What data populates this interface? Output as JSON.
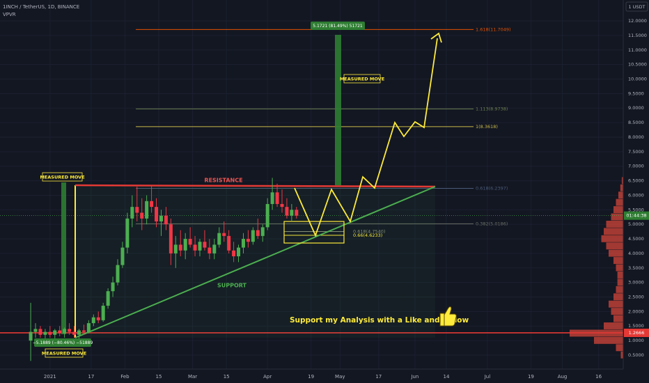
{
  "header": {
    "symbol": "1INCH / TetherUS, 1D, BINANCE",
    "indicator": "VPVR",
    "currency": "1 USDT"
  },
  "chart_data": {
    "type": "candlestick",
    "x": [
      -8,
      -6,
      -4,
      -2,
      0,
      2,
      4,
      6,
      8,
      10,
      12,
      14,
      16,
      18,
      20,
      22,
      24,
      26,
      28,
      30,
      32,
      34,
      36,
      38,
      40,
      42,
      44,
      46,
      48,
      50,
      52,
      54,
      56,
      58,
      60,
      62,
      64,
      66,
      68,
      70,
      72,
      74,
      76,
      78,
      80,
      82,
      84,
      86,
      88,
      90,
      92,
      94,
      96,
      98,
      100,
      102
    ],
    "open": [
      1.0,
      1.3,
      1.4,
      1.2,
      1.3,
      1.2,
      1.35,
      1.25,
      1.4,
      1.3,
      1.2,
      1.35,
      1.3,
      1.6,
      1.8,
      1.7,
      2.2,
      2.7,
      3.0,
      3.6,
      4.2,
      5.2,
      5.6,
      5.4,
      5.2,
      5.8,
      5.6,
      5.1,
      5.3,
      5.0,
      4.0,
      4.3,
      4.1,
      4.5,
      4.3,
      4.1,
      4.4,
      4.2,
      4.0,
      4.3,
      4.7,
      4.6,
      4.1,
      3.9,
      4.2,
      4.5,
      4.4,
      4.8,
      4.6,
      4.9,
      5.7,
      6.1,
      5.7,
      5.6,
      5.3,
      5.5
    ],
    "high": [
      2.3,
      1.6,
      1.5,
      1.4,
      1.5,
      1.4,
      1.5,
      1.45,
      1.6,
      1.5,
      1.4,
      1.55,
      1.7,
      1.9,
      2.0,
      2.3,
      2.8,
      3.2,
      3.8,
      4.4,
      5.4,
      6.0,
      6.3,
      5.9,
      6.0,
      6.35,
      5.9,
      5.5,
      5.6,
      5.2,
      4.6,
      4.8,
      4.7,
      4.9,
      4.6,
      4.5,
      4.8,
      4.5,
      4.5,
      4.9,
      5.1,
      4.8,
      4.4,
      4.3,
      4.7,
      4.8,
      4.9,
      5.2,
      5.0,
      5.9,
      6.6,
      6.4,
      6.2,
      5.9,
      5.7,
      5.6
    ],
    "low": [
      0.3,
      1.1,
      1.1,
      1.0,
      1.1,
      1.0,
      1.15,
      1.1,
      1.2,
      1.1,
      1.05,
      1.2,
      1.25,
      1.5,
      1.6,
      1.65,
      2.1,
      2.5,
      2.9,
      3.5,
      4.0,
      4.9,
      5.1,
      4.8,
      5.0,
      5.4,
      4.9,
      4.6,
      4.8,
      3.6,
      3.5,
      3.9,
      3.8,
      4.2,
      3.9,
      3.9,
      4.1,
      3.8,
      3.8,
      4.2,
      4.4,
      4.0,
      3.7,
      3.7,
      4.0,
      4.2,
      4.3,
      4.5,
      4.4,
      4.8,
      5.5,
      5.6,
      5.4,
      5.2,
      5.1,
      5.2
    ],
    "close": [
      1.3,
      1.4,
      1.2,
      1.3,
      1.2,
      1.35,
      1.25,
      1.4,
      1.3,
      1.2,
      1.35,
      1.3,
      1.6,
      1.8,
      1.7,
      2.2,
      2.7,
      3.0,
      3.6,
      4.2,
      5.2,
      5.6,
      5.4,
      5.2,
      5.8,
      5.6,
      5.1,
      5.3,
      5.0,
      4.0,
      4.3,
      4.1,
      4.5,
      4.3,
      4.1,
      4.4,
      4.2,
      4.0,
      4.3,
      4.7,
      4.6,
      4.1,
      3.9,
      4.2,
      4.5,
      4.4,
      4.8,
      4.6,
      4.9,
      5.7,
      6.1,
      5.7,
      5.6,
      5.3,
      5.5,
      5.3
    ],
    "up_color": "#4caf50",
    "down_color": "#f23645",
    "xlim": [
      -20.7,
      237.2
    ],
    "xticks": [
      {
        "value": 0,
        "label": "2021"
      },
      17,
      {
        "value": 31,
        "label": "Feb"
      },
      {
        "value": 45,
        "label": "15"
      },
      {
        "value": 59,
        "label": "Mar"
      },
      {
        "value": 73,
        "label": "15"
      },
      {
        "value": 90,
        "label": "Apr"
      },
      {
        "value": 108,
        "label": "19"
      },
      {
        "value": 120,
        "label": "May"
      },
      {
        "value": 136,
        "label": "17"
      },
      {
        "value": 151,
        "label": "Jun"
      },
      {
        "value": 164,
        "label": "14"
      },
      {
        "value": 181,
        "label": "Jul"
      },
      {
        "value": 199,
        "label": "19"
      },
      {
        "value": 212,
        "label": "Aug"
      },
      {
        "value": 227,
        "label": "16"
      }
    ],
    "ylim": [
      0.02,
      12.72
    ],
    "yticks": [
      {
        "value": 0.5,
        "label": "0.5000"
      },
      {
        "value": 1.0,
        "label": "1.0000"
      },
      {
        "value": 1.5,
        "label": "1.5000"
      },
      {
        "value": 2.0,
        "label": "2.0000"
      },
      {
        "value": 2.5,
        "label": "2.5000"
      },
      {
        "value": 3.0,
        "label": "3.0000"
      },
      {
        "value": 3.5,
        "label": "3.5000"
      },
      {
        "value": 4.0,
        "label": "4.0000"
      },
      {
        "value": 4.5,
        "label": "4.5000"
      },
      {
        "value": 5.0,
        "label": "5.0000"
      },
      {
        "value": 5.5,
        "label": "5.5000"
      },
      {
        "value": 6.0,
        "label": "6.0000"
      },
      {
        "value": 6.5,
        "label": "6.5000"
      },
      {
        "value": 7.0,
        "label": "7.0000"
      },
      {
        "value": 7.5,
        "label": "7.5000"
      },
      {
        "value": 8.0,
        "label": "8.0000"
      },
      {
        "value": 8.5,
        "label": "8.5000"
      },
      {
        "value": 9.0,
        "label": "9.0000"
      },
      {
        "value": 9.5,
        "label": "9.5000"
      },
      {
        "value": 10.0,
        "label": "10.0000"
      },
      {
        "value": 10.5,
        "label": "10.5000"
      },
      {
        "value": 11.0,
        "label": "11.0000"
      },
      {
        "value": 11.5,
        "label": "11.5000"
      },
      {
        "value": 12.0,
        "label": "12.0000"
      }
    ],
    "grid": true,
    "support_level": 1.2666,
    "fib_levels": [
      {
        "value": 11.7049,
        "label": "1.618(11.7049)",
        "color": "#e65100"
      },
      {
        "value": 8.9738,
        "label": "1.113(8.9738)",
        "color": "#6d7f4f"
      },
      {
        "value": 8.3618,
        "label": "1(8.3618)",
        "color": "#c9b94a"
      },
      {
        "value": 6.2397,
        "label": "0.618(6.2397)",
        "color": "#4a5a78"
      },
      {
        "value": 5.0186,
        "label": "0.382(5.0186)",
        "color": "#6a6f66"
      }
    ],
    "box_fib_levels": [
      {
        "value": 4.754,
        "label": "0.618(4.7540)",
        "color": "#8a8f7a"
      },
      {
        "value": 4.6233,
        "label": "0.66(4.6233)",
        "color": "#ffeb3b"
      }
    ],
    "annotations": {
      "measured_move_left": "MEASURED MOVE",
      "measured_move_right": "MEASURED MOVE",
      "measured_move_bottom": "MEASURED MOVE",
      "resistance": "RESISTANCE",
      "support": "SUPPORT",
      "move_up": "5.1721 (81.49%) 51721",
      "move_down": "−5.1889 (−80.46%) −51889",
      "cta": "Support my Analysis with a Like and Follow"
    },
    "countdown": "01:44:38",
    "volume_profile": {
      "prices": [
        0.5,
        0.75,
        1.0,
        1.25,
        1.5,
        1.75,
        2.0,
        2.25,
        2.5,
        2.75,
        3.0,
        3.25,
        3.5,
        3.75,
        4.0,
        4.25,
        4.5,
        4.75,
        5.0,
        5.25,
        5.5,
        5.75,
        6.0,
        6.25,
        6.5
      ],
      "sizes": [
        5,
        15,
        60,
        110,
        40,
        20,
        25,
        30,
        20,
        15,
        12,
        12,
        15,
        20,
        30,
        35,
        45,
        40,
        35,
        25,
        20,
        15,
        10,
        6,
        3
      ],
      "color": "#d4453a"
    }
  }
}
